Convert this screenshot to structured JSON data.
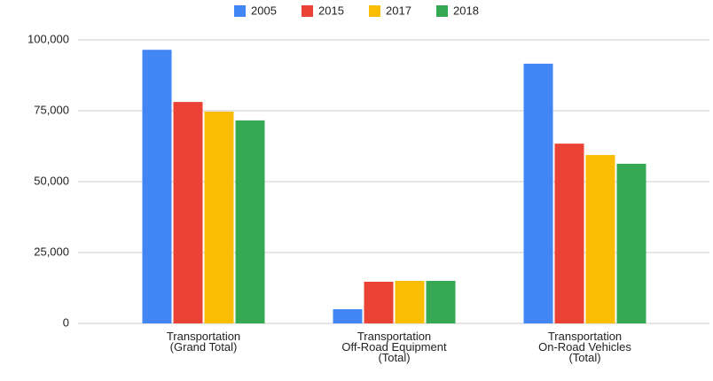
{
  "chart_data": {
    "type": "bar",
    "categories": [
      [
        "Transportation",
        "(Grand Total)"
      ],
      [
        "Transportation",
        "Off-Road Equipment",
        "(Total)"
      ],
      [
        "Transportation",
        "On-Road Vehicles",
        "(Total)"
      ]
    ],
    "series": [
      {
        "name": "2005",
        "color": "#4285f4",
        "values": [
          96500,
          5000,
          91600
        ]
      },
      {
        "name": "2015",
        "color": "#ea4335",
        "values": [
          78100,
          14700,
          63400
        ]
      },
      {
        "name": "2017",
        "color": "#fbbc04",
        "values": [
          74700,
          15000,
          59400
        ]
      },
      {
        "name": "2018",
        "color": "#34a853",
        "values": [
          71600,
          15000,
          56300
        ]
      }
    ],
    "ylim": [
      0,
      100000
    ],
    "yticks": [
      {
        "value": 0,
        "label": "0"
      },
      {
        "value": 25000,
        "label": "25,000"
      },
      {
        "value": 50000,
        "label": "50,000"
      },
      {
        "value": 75000,
        "label": "75,000"
      },
      {
        "value": 100000,
        "label": "100,000"
      }
    ],
    "grid": true,
    "legend": "top"
  }
}
